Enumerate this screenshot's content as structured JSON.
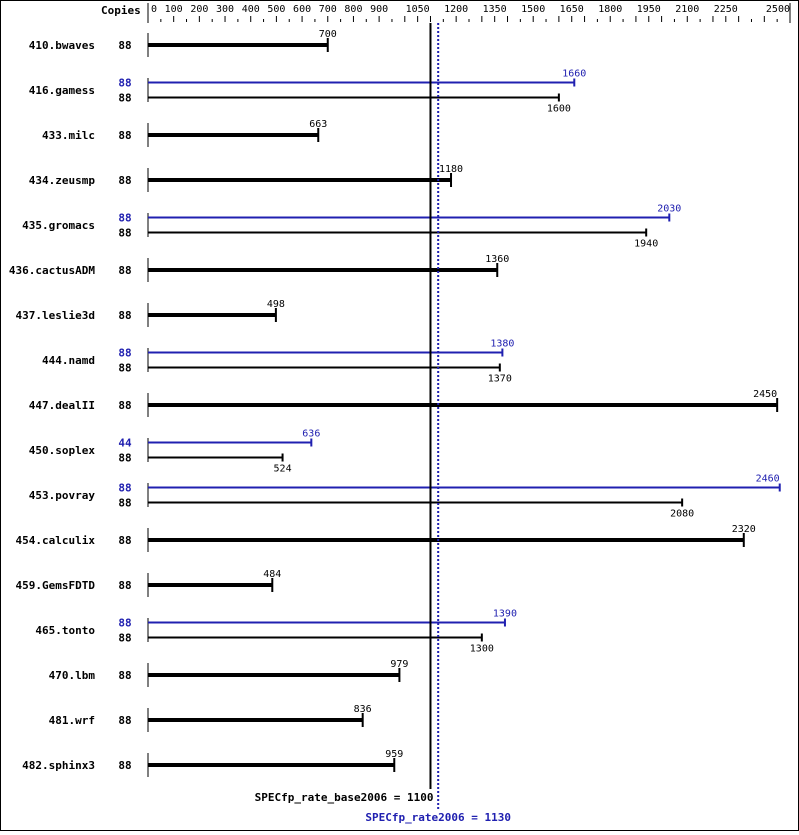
{
  "chart_data": {
    "type": "bar",
    "orientation": "horizontal",
    "copies_header": "Copies",
    "xlim": [
      0,
      2500
    ],
    "ticks": [
      0,
      100,
      200,
      300,
      400,
      500,
      600,
      700,
      800,
      900,
      1050,
      1200,
      1350,
      1500,
      1650,
      1800,
      1950,
      2100,
      2250,
      2500
    ],
    "colors": {
      "base": "#000000",
      "peak": "#2020b0"
    },
    "benchmarks": [
      {
        "name": "410.bwaves",
        "base_copies": "88",
        "base": 700
      },
      {
        "name": "416.gamess",
        "peak_copies": "88",
        "peak": 1660,
        "base_copies": "88",
        "base": 1600
      },
      {
        "name": "433.milc",
        "base_copies": "88",
        "base": 663
      },
      {
        "name": "434.zeusmp",
        "base_copies": "88",
        "base": 1180
      },
      {
        "name": "435.gromacs",
        "peak_copies": "88",
        "peak": 2030,
        "base_copies": "88",
        "base": 1940
      },
      {
        "name": "436.cactusADM",
        "base_copies": "88",
        "base": 1360
      },
      {
        "name": "437.leslie3d",
        "base_copies": "88",
        "base": 498
      },
      {
        "name": "444.namd",
        "peak_copies": "88",
        "peak": 1380,
        "base_copies": "88",
        "base": 1370
      },
      {
        "name": "447.dealII",
        "base_copies": "88",
        "base": 2450
      },
      {
        "name": "450.soplex",
        "peak_copies": "44",
        "peak": 636,
        "base_copies": "88",
        "base": 524
      },
      {
        "name": "453.povray",
        "peak_copies": "88",
        "peak": 2460,
        "base_copies": "88",
        "base": 2080
      },
      {
        "name": "454.calculix",
        "base_copies": "88",
        "base": 2320
      },
      {
        "name": "459.GemsFDTD",
        "base_copies": "88",
        "base": 484
      },
      {
        "name": "465.tonto",
        "peak_copies": "88",
        "peak": 1390,
        "base_copies": "88",
        "base": 1300
      },
      {
        "name": "470.lbm",
        "base_copies": "88",
        "base": 979
      },
      {
        "name": "481.wrf",
        "base_copies": "88",
        "base": 836
      },
      {
        "name": "482.sphinx3",
        "base_copies": "88",
        "base": 959
      }
    ],
    "base_mean": {
      "label": "SPECfp_rate_base2006 = 1100",
      "value": 1100
    },
    "peak_mean": {
      "label": "SPECfp_rate2006 = 1130",
      "value": 1130
    }
  }
}
